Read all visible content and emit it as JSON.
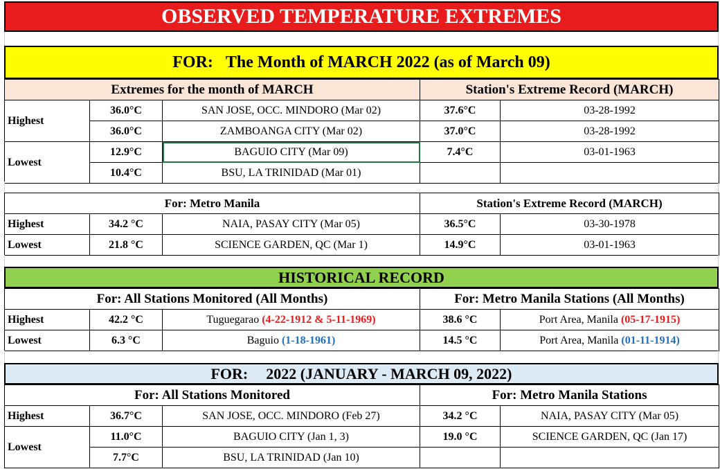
{
  "title": "OBSERVED TEMPERATURE EXTREMES",
  "march": {
    "for_label": "FOR:",
    "for_text": "The Month of MARCH 2022 (as of  March 09)",
    "left_header": "Extremes for the month of MARCH",
    "right_header": "Station's Extreme Record (MARCH)",
    "rows": [
      {
        "label": "Highest",
        "temp": "36.0°C",
        "station": "SAN JOSE, OCC. MINDORO (Mar 02)",
        "rec_temp": "37.6°C",
        "rec_date": "03-28-1992"
      },
      {
        "label": "",
        "temp": "36.0°C",
        "station": "ZAMBOANGA CITY (Mar 02)",
        "rec_temp": "37.0°C",
        "rec_date": "03-28-1992"
      },
      {
        "label": "Lowest",
        "temp": "12.9°C",
        "station": "BAGUIO CITY  (Mar 09)",
        "rec_temp": "7.4°C",
        "rec_date": "03-01-1963"
      },
      {
        "label": "",
        "temp": "10.4°C",
        "station": "BSU, LA TRINIDAD (Mar 01)",
        "rec_temp": "",
        "rec_date": ""
      }
    ]
  },
  "metro": {
    "left_header": "For: Metro Manila",
    "right_header": "Station's Extreme Record (MARCH)",
    "rows": [
      {
        "label": "Highest",
        "temp": "34.2 °C",
        "station": "NAIA, PASAY CITY (Mar 05)",
        "rec_temp": "36.5°C",
        "rec_date": "03-30-1978"
      },
      {
        "label": "Lowest",
        "temp": "21.8 °C",
        "station": "SCIENCE GARDEN, QC (Mar 1)",
        "rec_temp": "14.9°C",
        "rec_date": "03-01-1963"
      }
    ]
  },
  "historical": {
    "title": "HISTORICAL RECORD",
    "left_header": "For:  All Stations Monitored (All Months)",
    "right_header": "For: Metro Manila Stations (All Months)",
    "rows": [
      {
        "label": "Highest",
        "temp": "42.2 °C",
        "station": "Tuguegarao",
        "station_date": "(4-22-1912 & 5-11-1969)",
        "rec_temp": "38.6 °C",
        "rec_station": "Port Area, Manila",
        "rec_date": "(05-17-1915)"
      },
      {
        "label": "Lowest",
        "temp": "6.3 °C",
        "station": "Baguio",
        "station_date": "(1-18-1961)",
        "rec_temp": "14.5 °C",
        "rec_station": "Port Area, Manila",
        "rec_date": "(01-11-1914)"
      }
    ]
  },
  "year2022": {
    "for_label": "FOR:",
    "for_text": "2022 (JANUARY - MARCH 09, 2022)",
    "left_header": "For:  All Stations Monitored",
    "right_header": "For: Metro Manila Stations",
    "rows": [
      {
        "label": "Highest",
        "temp": "36.7°C",
        "station": "SAN JOSE, OCC. MINDORO (Feb 27)",
        "rec_temp": "34.2 °C",
        "rec_station": "NAIA, PASAY CITY (Mar 05)"
      },
      {
        "label": "Lowest",
        "temp": "11.0°C",
        "station": "BAGUIO CITY  (Jan 1, 3)",
        "rec_temp": "19.0 °C",
        "rec_station": "SCIENCE GARDEN, QC (Jan 17)"
      },
      {
        "label": "",
        "temp": "7.7°C",
        "station": "BSU, LA TRINIDAD (Jan 10)",
        "rec_temp": "",
        "rec_station": ""
      }
    ]
  },
  "colors": {
    "title_bg": "#e81c1c",
    "march_bar_bg": "#ffff00",
    "march_header_bg": "#fbe5d6",
    "historical_bg": "#92d050",
    "year_bar_bg": "#ddebf7",
    "red_text": "#e81c1c",
    "blue_text": "#1f6fbf"
  }
}
